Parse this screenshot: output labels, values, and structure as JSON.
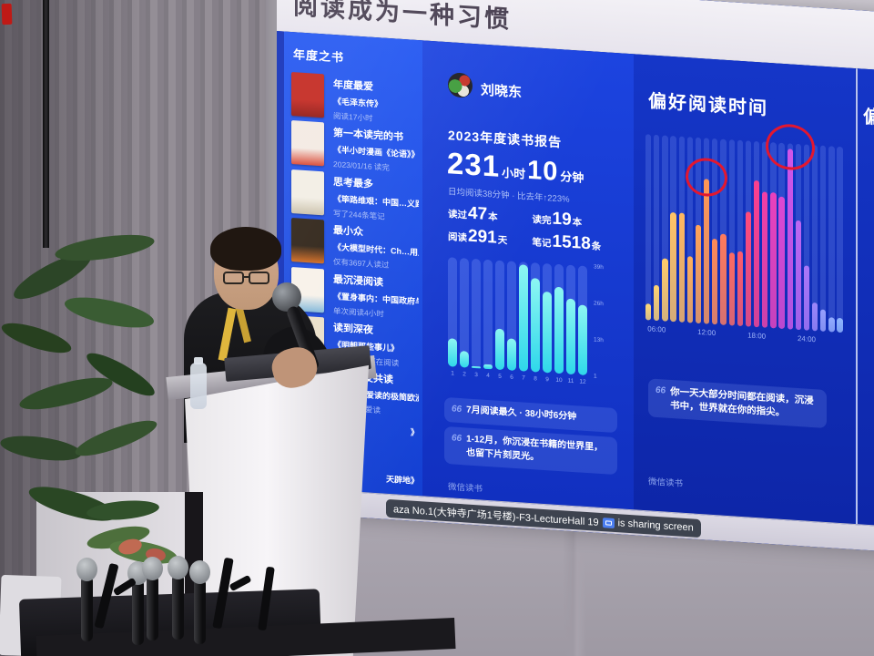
{
  "photo": {
    "sharing_banner": {
      "text_before_icon": "aza No.1(大钟寺广场1号楼)-F3-LectureHall 19",
      "text_after_icon": "is sharing screen",
      "icon": "screen-share-icon"
    }
  },
  "slide": {
    "title": "阅读成为一种习惯",
    "sidebar": {
      "header": "年度之书",
      "books": [
        {
          "badge": "年度最爱",
          "title": "《毛泽东传》",
          "caption": "阅读17小时",
          "cover": [
            "#c3241c",
            "#8e1410"
          ],
          "partial": false
        },
        {
          "badge": "第一本读完的书",
          "title": "《半小时漫画《论语》》",
          "caption": "2023/01/16 读完",
          "cover": [
            "#f3e9e2",
            "#d8432f"
          ],
          "partial": false
        },
        {
          "badge": "思考最多",
          "title": "《筚路维艰：中国…义路径的五次选择》",
          "caption": "写了244条笔记",
          "cover": [
            "#f2eee4",
            "#c9bfa8"
          ],
          "partial": false
        },
        {
          "badge": "最小众",
          "title": "《大模型时代：Ch…用人工智能浪潮》",
          "caption": "仅有3697人读过",
          "cover": [
            "#2c2014",
            "#d2691e"
          ],
          "partial": false
        },
        {
          "badge": "最沉浸阅读",
          "title": "《置身事内：中国政府与经济发展》",
          "caption": "单次阅读4小时",
          "cover": [
            "#f7f1e9",
            "#7fb6d9"
          ],
          "partial": false
        },
        {
          "badge": "读到深夜",
          "title": "《明朝那些事儿》",
          "caption": "凌晨23:48还在阅读",
          "cover": [
            "#eadfc9",
            "#b5342c"
          ],
          "partial": false
        },
        {
          "badge": "最多好友共读",
          "title": "《你一定爱读的极简欧洲史》",
          "caption": "10好友也爱读",
          "cover": [
            "#f4f0ea",
            "#e8b33a"
          ],
          "partial": false
        },
        {
          "badge": "",
          "title": "》",
          "caption": "",
          "cover": [
            "#cfd4e2",
            "#aab2c8"
          ],
          "partial": true
        },
        {
          "badge": "",
          "title": "天辟地》",
          "caption": "",
          "cover": [
            "#cfd4e2",
            "#aab2c8"
          ],
          "partial": true
        }
      ]
    },
    "report": {
      "user_name": "刘晓东",
      "report_title": "2023年度读书报告",
      "duration": {
        "hours": "231",
        "hours_unit": "小时",
        "minutes": "10",
        "minutes_unit": "分钟"
      },
      "daily_note": "日均阅读38分钟 · 比去年↑223%",
      "stats": [
        {
          "label": "读过",
          "value": "47",
          "unit": "本"
        },
        {
          "label": "读完",
          "value": "19",
          "unit": "本"
        },
        {
          "label": "阅读",
          "value": "291",
          "unit": "天"
        },
        {
          "label": "笔记",
          "value": "1518",
          "unit": "条"
        }
      ],
      "quote_mark": "66",
      "quotes": [
        "7月阅读最久 · 38小时6分钟",
        "1-12月，你沉浸在书籍的世界里，也留下片刻灵光。"
      ],
      "watermark": "微信读书"
    },
    "preferred_time": {
      "title": "偏好阅读时间",
      "quote": "你一天大部分时间都在阅读，沉浸书中，世界就在你的指尖。",
      "watermark": "微信读书",
      "next_panel_partial": "偏"
    }
  },
  "chart_data": [
    {
      "type": "bar",
      "title": "每月阅读时长",
      "categories": [
        "1",
        "2",
        "3",
        "4",
        "5",
        "6",
        "7",
        "8",
        "9",
        "10",
        "11",
        "12"
      ],
      "values": [
        10,
        6,
        0.8,
        1.5,
        14.5,
        11.5,
        38,
        33.5,
        29,
        31,
        27,
        25
      ],
      "unit": "h",
      "yticks": [
        "39h",
        "26h",
        "13h",
        "1"
      ],
      "ylim": [
        0,
        39
      ],
      "bar_color": "#3ae4ee",
      "grid": false,
      "annotation": "7月阅读最久 · 38小时6分钟"
    },
    {
      "type": "bar",
      "title": "偏好阅读时间",
      "categories": [
        "05:00",
        "06:00",
        "07:00",
        "08:00",
        "09:00",
        "10:00",
        "11:00",
        "12:00",
        "13:00",
        "14:00",
        "15:00",
        "16:00",
        "17:00",
        "18:00",
        "19:00",
        "20:00",
        "21:00",
        "22:00",
        "23:00",
        "24:00",
        "01:00",
        "02:00",
        "03:00",
        "04:00"
      ],
      "values_percent": [
        9,
        19,
        34,
        59,
        59,
        36,
        53,
        78,
        46,
        49,
        39,
        40,
        62,
        79,
        73,
        73,
        71,
        97,
        59,
        35,
        15,
        12,
        8,
        8
      ],
      "x_tick_labels": [
        "06:00",
        "12:00",
        "18:00",
        "24:00"
      ],
      "x_tick_indices": [
        1,
        7,
        13,
        19
      ],
      "highlighted_indices": [
        7,
        17
      ],
      "highlight_color": "#e3172f",
      "bar_colors": [
        "#ffd978",
        "#ffd372",
        "#ffcb6b",
        "#ffc366",
        "#ffb960",
        "#ffaf5c",
        "#ffa358",
        "#ff9756",
        "#ff8a58",
        "#ff7a5c",
        "#ff6a62",
        "#ff5a6c",
        "#ff4b7a",
        "#fb408e",
        "#f33fa6",
        "#ea41bc",
        "#dd48d2",
        "#d055e8",
        "#bd66f2",
        "#ab77f8",
        "#9c86fa",
        "#97a0fc",
        "#93acff",
        "#90b6ff"
      ],
      "grid": false
    }
  ]
}
